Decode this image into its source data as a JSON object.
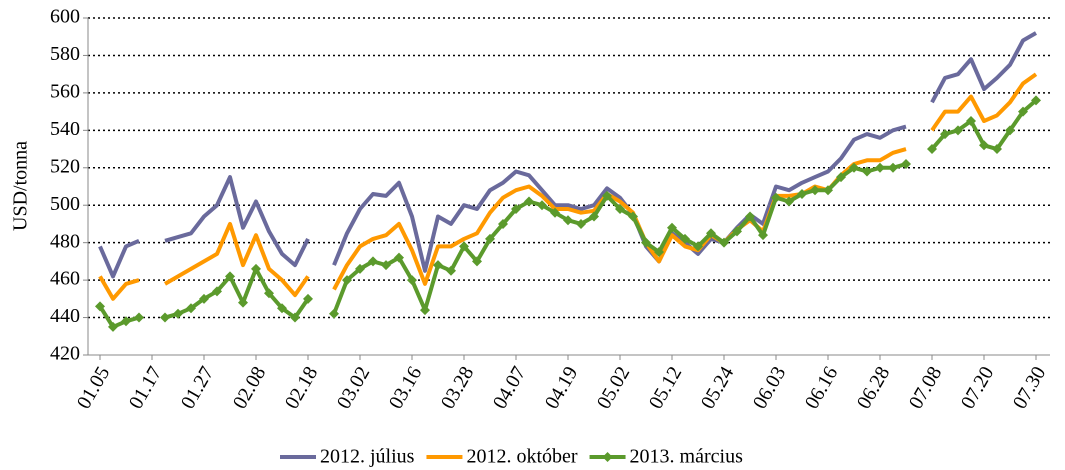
{
  "chart_data": {
    "type": "line",
    "y_label": "USD/tonna",
    "categories": [
      "01.05",
      null,
      null,
      null,
      "01.17",
      null,
      null,
      null,
      "01.27",
      null,
      null,
      null,
      "02.08",
      null,
      null,
      null,
      "02.18",
      null,
      null,
      null,
      "03.02",
      null,
      null,
      null,
      "03.16",
      null,
      null,
      null,
      "03.28",
      null,
      null,
      null,
      "04.07",
      null,
      null,
      null,
      "04.19",
      null,
      null,
      null,
      "05.02",
      null,
      null,
      null,
      "05.12",
      null,
      null,
      null,
      "05.24",
      null,
      null,
      null,
      "06.03",
      null,
      null,
      null,
      "06.16",
      null,
      null,
      null,
      "06.28",
      null,
      null,
      null,
      "07.08",
      null,
      null,
      null,
      "07.20",
      null,
      null,
      null,
      "07.30"
    ],
    "series": [
      {
        "name": "2012. július",
        "color": "#6a6a9c",
        "values": [
          478,
          462,
          478,
          481,
          null,
          481,
          483,
          485,
          494,
          500,
          515,
          488,
          502,
          486,
          474,
          468,
          482,
          null,
          468,
          485,
          498,
          506,
          505,
          512,
          494,
          465,
          494,
          490,
          500,
          498,
          508,
          512,
          518,
          516,
          508,
          500,
          500,
          498,
          500,
          509,
          504,
          495,
          478,
          470,
          485,
          480,
          474,
          482,
          480,
          488,
          495,
          490,
          510,
          508,
          512,
          515,
          518,
          525,
          535,
          538,
          536,
          540,
          542,
          null,
          555,
          568,
          570,
          578,
          562,
          568,
          575,
          588,
          592
        ]
      },
      {
        "name": "2012. október",
        "color": "#ff9900",
        "values": [
          462,
          450,
          458,
          460,
          null,
          458,
          462,
          466,
          470,
          474,
          490,
          468,
          484,
          466,
          460,
          452,
          462,
          null,
          455,
          468,
          478,
          482,
          484,
          490,
          476,
          458,
          478,
          478,
          482,
          485,
          496,
          504,
          508,
          510,
          505,
          498,
          498,
          496,
          497,
          506,
          502,
          496,
          480,
          470,
          484,
          478,
          476,
          484,
          480,
          487,
          492,
          486,
          505,
          505,
          506,
          510,
          508,
          516,
          522,
          524,
          524,
          528,
          530,
          null,
          540,
          550,
          550,
          558,
          545,
          548,
          555,
          565,
          570
        ]
      },
      {
        "name": "2013. március",
        "color": "#5b9a2c",
        "marker": "diamond",
        "values": [
          446,
          435,
          438,
          440,
          null,
          440,
          442,
          445,
          450,
          454,
          462,
          448,
          466,
          453,
          445,
          440,
          450,
          null,
          442,
          460,
          466,
          470,
          468,
          472,
          460,
          444,
          468,
          465,
          478,
          470,
          482,
          490,
          498,
          502,
          500,
          496,
          492,
          490,
          494,
          505,
          498,
          494,
          480,
          475,
          488,
          482,
          478,
          485,
          480,
          486,
          494,
          484,
          504,
          502,
          506,
          508,
          508,
          515,
          520,
          518,
          520,
          520,
          522,
          null,
          530,
          538,
          540,
          545,
          532,
          530,
          540,
          550,
          556
        ]
      }
    ],
    "ylim": [
      420,
      600
    ],
    "yticks": [
      420,
      440,
      460,
      480,
      500,
      520,
      540,
      560,
      580,
      600
    ],
    "grid": true
  }
}
